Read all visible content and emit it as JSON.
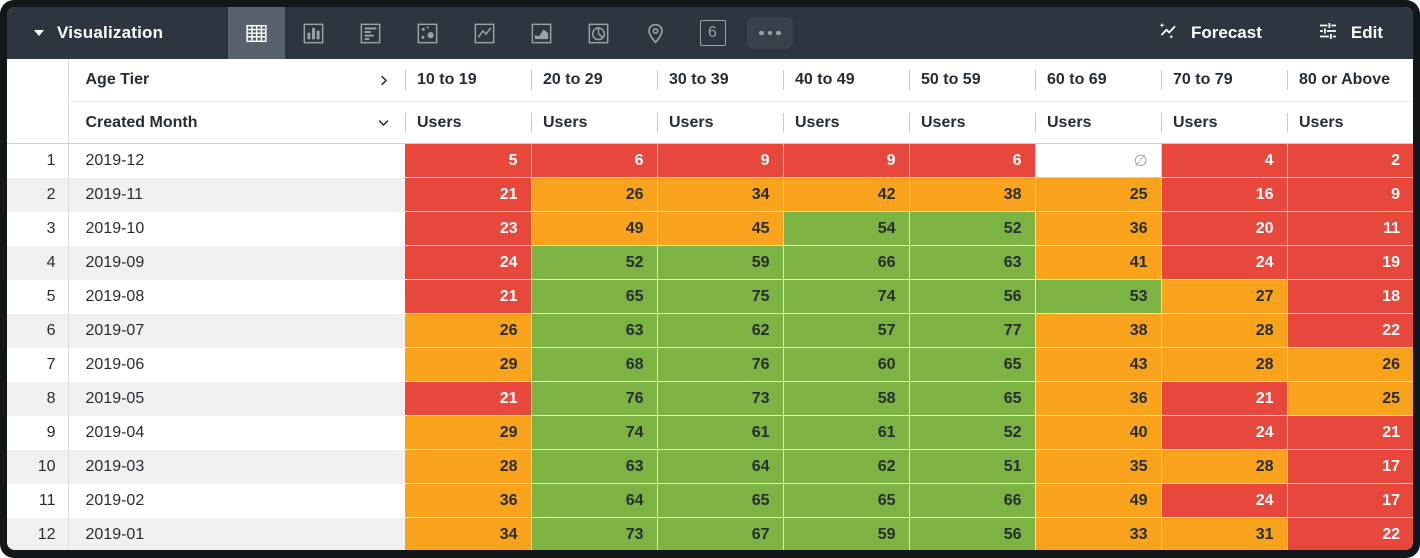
{
  "topbar": {
    "visualization_label": "Visualization",
    "forecast_label": "Forecast",
    "edit_label": "Edit",
    "single_value_glyph": "6",
    "icon_names": [
      "chevron-down-icon",
      "table-viz-icon",
      "column-chart-icon",
      "bar-chart-icon",
      "scatter-chart-icon",
      "line-chart-icon",
      "area-chart-icon",
      "pie-chart-icon",
      "map-pin-icon",
      "single-value-icon",
      "more-icon",
      "forecast-sparkle-icon",
      "tune-icon"
    ],
    "selected_icon": "table-viz-icon"
  },
  "table": {
    "pivot_label": "Age Tier",
    "dimension_label": "Created Month",
    "measure_label": "Users",
    "age_tiers": [
      "10 to 19",
      "20 to 29",
      "30 to 39",
      "40 to 49",
      "50 to 59",
      "60 to 69",
      "70 to 79",
      "80 or Above"
    ],
    "null_symbol": "∅",
    "rows": [
      {
        "index": 1,
        "month": "2019-12",
        "values": [
          5,
          6,
          9,
          9,
          6,
          null,
          4,
          2
        ]
      },
      {
        "index": 2,
        "month": "2019-11",
        "values": [
          21,
          26,
          34,
          42,
          38,
          25,
          16,
          9
        ]
      },
      {
        "index": 3,
        "month": "2019-10",
        "values": [
          23,
          49,
          45,
          54,
          52,
          36,
          20,
          11
        ]
      },
      {
        "index": 4,
        "month": "2019-09",
        "values": [
          24,
          52,
          59,
          66,
          63,
          41,
          24,
          19
        ]
      },
      {
        "index": 5,
        "month": "2019-08",
        "values": [
          21,
          65,
          75,
          74,
          56,
          53,
          27,
          18
        ]
      },
      {
        "index": 6,
        "month": "2019-07",
        "values": [
          26,
          63,
          62,
          57,
          77,
          38,
          28,
          22
        ]
      },
      {
        "index": 7,
        "month": "2019-06",
        "values": [
          29,
          68,
          76,
          60,
          65,
          43,
          28,
          26
        ]
      },
      {
        "index": 8,
        "month": "2019-05",
        "values": [
          21,
          76,
          73,
          58,
          65,
          36,
          21,
          25
        ]
      },
      {
        "index": 9,
        "month": "2019-04",
        "values": [
          29,
          74,
          61,
          61,
          52,
          40,
          24,
          21
        ]
      },
      {
        "index": 10,
        "month": "2019-03",
        "values": [
          28,
          63,
          64,
          62,
          51,
          35,
          28,
          17
        ]
      },
      {
        "index": 11,
        "month": "2019-02",
        "values": [
          36,
          64,
          65,
          65,
          66,
          49,
          24,
          17
        ]
      },
      {
        "index": 12,
        "month": "2019-01",
        "values": [
          34,
          73,
          67,
          59,
          56,
          33,
          31,
          22
        ]
      }
    ],
    "formatting": {
      "red_below": 25,
      "green_from": 50,
      "red": "#E8473C",
      "orange": "#F9A21C",
      "green": "#7CB342",
      "red_text": "#FFFFFF",
      "dark_text": "#262D33",
      "null_bg": "#FFFFFF",
      "null_text": "#9AA0A6"
    }
  },
  "colors": {
    "frame": "#14171A",
    "topbar_bg": "#2C3540",
    "selected_icon_bg": "#57626C",
    "icon_color": "#9AA2A9",
    "header_text": "#262D33",
    "row_alt_bg": "#F0F0F1"
  }
}
